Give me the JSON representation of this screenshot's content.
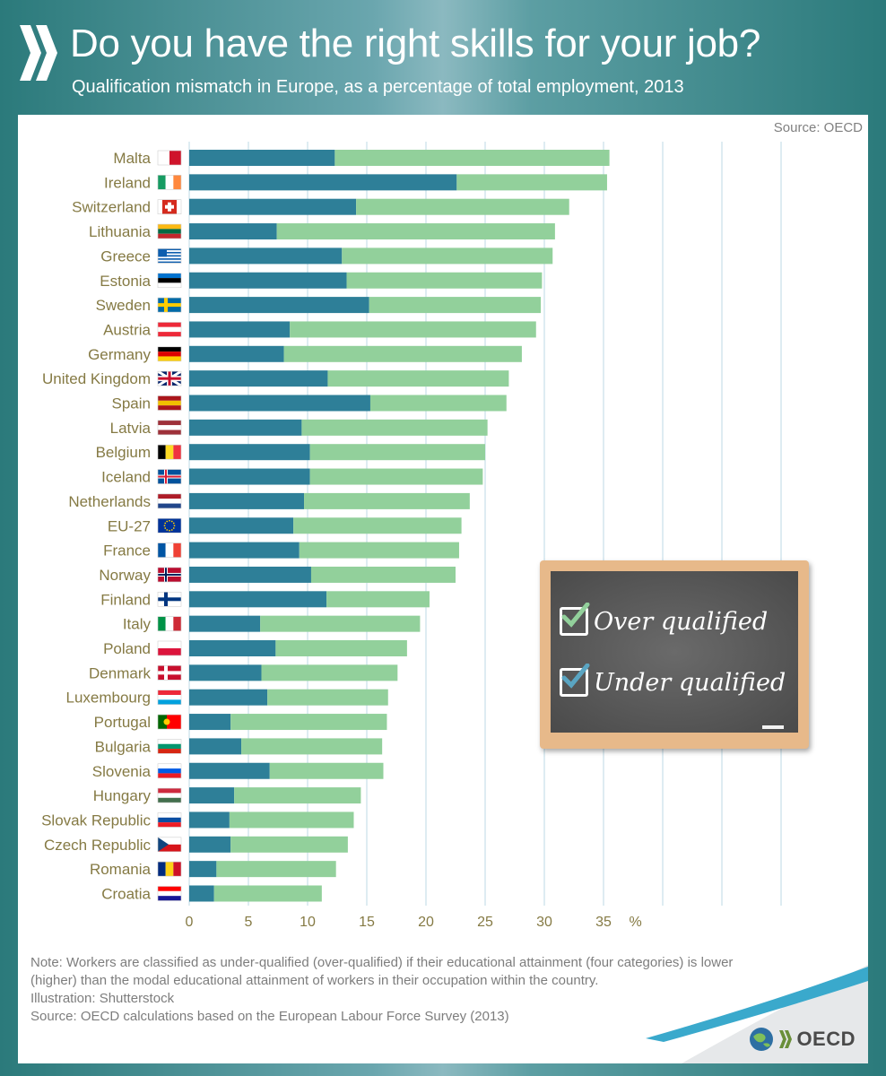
{
  "header": {
    "title": "Do you have the right skills for your job?",
    "subtitle": "Qualification mismatch in Europe, as a percentage of total employment, 2013"
  },
  "source_top": "Source: OECD",
  "legend": {
    "over": "Over qualified",
    "under": "Under qualified"
  },
  "notes": {
    "line1": "Note:  Workers are classified as under-qualified (over-qualified) if their educational attainment (four categories) is lower",
    "line2": "(higher) than the modal educational attainment of workers in their occupation within the country.",
    "line3": "Illustration: Shutterstock",
    "line4": "Source: OECD calculations based on the European Labour Force Survey (2013)"
  },
  "oecd_logo": "OECD",
  "colors": {
    "under": "#2e7f98",
    "over": "#92d09b",
    "grid": "#bcd8e4",
    "label": "#857a44"
  },
  "chart_data": {
    "type": "bar",
    "orientation": "horizontal",
    "stacked": true,
    "categories": [
      "Malta",
      "Ireland",
      "Switzerland",
      "Lithuania",
      "Greece",
      "Estonia",
      "Sweden",
      "Austria",
      "Germany",
      "United Kingdom",
      "Spain",
      "Latvia",
      "Belgium",
      "Iceland",
      "Netherlands",
      "EU-27",
      "France",
      "Norway",
      "Finland",
      "Italy",
      "Poland",
      "Denmark",
      "Luxembourg",
      "Portugal",
      "Bulgaria",
      "Slovenia",
      "Hungary",
      "Slovak Republic",
      "Czech Republic",
      "Romania",
      "Croatia"
    ],
    "series": [
      {
        "name": "Under qualified",
        "values": [
          12.3,
          22.6,
          14.1,
          7.4,
          12.9,
          13.3,
          15.2,
          8.5,
          8.0,
          11.7,
          15.3,
          9.5,
          10.2,
          10.2,
          9.7,
          8.8,
          9.3,
          10.3,
          11.6,
          6.0,
          7.3,
          6.1,
          6.6,
          3.5,
          4.4,
          6.8,
          3.8,
          3.4,
          3.5,
          2.3,
          2.1
        ]
      },
      {
        "name": "Over qualified",
        "values": [
          23.2,
          12.7,
          18.0,
          23.5,
          17.8,
          16.5,
          14.5,
          20.8,
          20.1,
          15.3,
          11.5,
          15.7,
          14.8,
          14.6,
          14.0,
          14.2,
          13.5,
          12.2,
          8.7,
          13.5,
          11.1,
          11.5,
          10.2,
          13.2,
          11.9,
          9.6,
          10.7,
          10.5,
          9.9,
          10.1,
          9.1
        ]
      }
    ],
    "x_ticks": [
      "0",
      "5",
      "10",
      "15",
      "20",
      "25",
      "30",
      "35"
    ],
    "x_unit": "%",
    "xlim": [
      0,
      50
    ],
    "grid": true,
    "legend_position": "right"
  }
}
